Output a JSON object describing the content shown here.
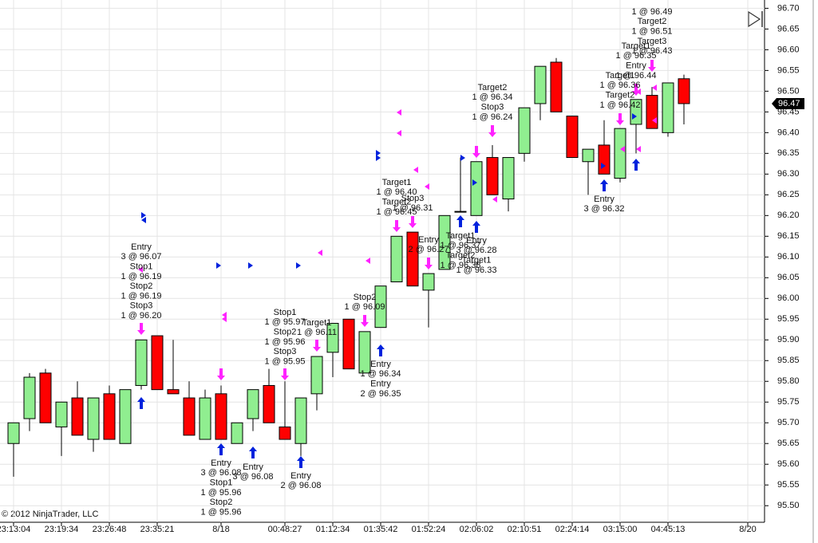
{
  "chart_data": {
    "type": "candlestick",
    "categories": [
      "23:13:04",
      null,
      null,
      "23:19:34",
      null,
      null,
      "23:26:48",
      null,
      null,
      "23:35:21",
      null,
      null,
      null,
      "8/18",
      null,
      null,
      null,
      "00:48:27",
      null,
      null,
      "01:12:34",
      null,
      null,
      "01:35:42",
      null,
      null,
      "01:52:24",
      null,
      null,
      "02:06:02",
      null,
      null,
      "02:10:51",
      null,
      null,
      "02:24:14",
      null,
      null,
      "03:15:00",
      null,
      null,
      "04:45:13",
      null,
      null,
      null,
      null,
      "8/20"
    ],
    "open": [
      95.65,
      95.71,
      95.82,
      95.69,
      95.76,
      95.66,
      95.77,
      95.65,
      95.79,
      95.91,
      95.78,
      95.76,
      95.66,
      95.77,
      95.65,
      95.71,
      95.79,
      95.69,
      95.65,
      95.77,
      95.87,
      95.95,
      95.82,
      95.93,
      96.04,
      96.16,
      96.02,
      96.07,
      96.21,
      96.2,
      96.34,
      96.24,
      96.35,
      96.47,
      96.57,
      96.44,
      96.33,
      96.37,
      96.29,
      96.42,
      96.49,
      96.4,
      96.53,
      null,
      null,
      null,
      null
    ],
    "high": [
      95.7,
      95.82,
      95.83,
      95.75,
      95.8,
      95.76,
      95.79,
      95.78,
      95.9,
      95.91,
      95.9,
      95.8,
      95.78,
      95.79,
      95.7,
      95.78,
      95.83,
      95.8,
      95.76,
      95.86,
      95.94,
      95.95,
      95.92,
      96.03,
      96.15,
      96.16,
      96.06,
      96.2,
      96.34,
      96.33,
      96.37,
      96.34,
      96.46,
      96.56,
      96.58,
      96.44,
      96.36,
      96.43,
      96.41,
      96.48,
      96.51,
      96.52,
      96.54,
      null,
      null,
      null,
      null
    ],
    "low": [
      95.57,
      95.68,
      95.7,
      95.62,
      95.67,
      95.63,
      95.66,
      95.65,
      95.78,
      95.78,
      95.77,
      95.67,
      95.66,
      95.66,
      95.65,
      95.68,
      95.7,
      95.66,
      95.62,
      95.73,
      95.81,
      95.83,
      95.82,
      95.93,
      96.04,
      96.03,
      95.93,
      96.07,
      96.21,
      96.2,
      96.25,
      96.21,
      96.33,
      96.43,
      96.45,
      96.34,
      96.25,
      96.3,
      96.28,
      96.35,
      96.41,
      96.39,
      96.42,
      null,
      null,
      null,
      null
    ],
    "close": [
      95.7,
      95.81,
      95.7,
      95.75,
      95.67,
      95.76,
      95.66,
      95.78,
      95.9,
      95.78,
      95.77,
      95.67,
      95.76,
      95.66,
      95.7,
      95.78,
      95.7,
      95.66,
      95.76,
      95.86,
      95.94,
      95.83,
      95.92,
      96.03,
      96.15,
      96.03,
      96.06,
      96.2,
      96.21,
      96.33,
      96.25,
      96.34,
      96.46,
      96.56,
      96.45,
      96.34,
      96.36,
      96.3,
      96.41,
      96.48,
      96.41,
      96.52,
      96.47,
      null,
      null,
      null,
      null
    ],
    "up_color": "#90ee90",
    "down_color": "#ff0000",
    "ylim": [
      95.46,
      96.72
    ],
    "yticks": [
      {
        "value": 95.5,
        "label": "95.50"
      },
      95.55,
      {
        "value": 95.6,
        "label": "95.60"
      },
      95.65,
      {
        "value": 95.7,
        "label": "95.70"
      },
      95.75,
      {
        "value": 95.8,
        "label": "95.80"
      },
      95.85,
      {
        "value": 95.9,
        "label": "95.90"
      },
      95.95,
      {
        "value": 96.0,
        "label": "96.00"
      },
      96.05,
      {
        "value": 96.1,
        "label": "96.10"
      },
      96.15,
      {
        "value": 96.2,
        "label": "96.20"
      },
      96.25,
      {
        "value": 96.3,
        "label": "96.30"
      },
      96.35,
      {
        "value": 96.4,
        "label": "96.40"
      },
      96.45,
      {
        "value": 96.5,
        "label": "96.50"
      },
      96.55,
      {
        "value": 96.6,
        "label": "96.60"
      },
      96.65,
      {
        "value": 96.7,
        "label": "96.70"
      }
    ],
    "grid": true,
    "last_price": 96.47,
    "copyright": "© 2012 NinjaTrader, LLC",
    "annotations": [
      {
        "lines": [
          "Entry",
          "3 @ 96.07",
          "Stop1",
          "1 @ 96.19",
          "Stop2",
          "1 @ 96.19",
          "Stop3",
          "1 @ 96.20"
        ]
      },
      {
        "lines": [
          "Entry",
          "3 @ 96.08",
          "Stop1",
          "1 @ 95.96",
          "Stop2",
          "1 @ 95.96"
        ]
      },
      {
        "lines": [
          "Entry",
          "3 @ 96.08"
        ]
      },
      {
        "lines": [
          "Stop1",
          "1 @ 95.97",
          "Stop2",
          "1 @ 95.96",
          "Stop3",
          "1 @ 95.95"
        ]
      },
      {
        "lines": [
          "Target1",
          "1 @ 96.11"
        ]
      },
      {
        "lines": [
          "Entry",
          "2 @ 96.08"
        ]
      },
      {
        "lines": [
          "Stop2",
          "1 @ 96.09"
        ]
      },
      {
        "lines": [
          "Entry",
          "1 @ 96.34",
          "Entry",
          "2 @ 96.35"
        ]
      },
      {
        "lines": [
          "Target1",
          "1 @ 96.40",
          "Target2",
          "1 @ 96.45"
        ]
      },
      {
        "lines": [
          "Stop3",
          "1 @ 96.31"
        ]
      },
      {
        "lines": [
          "Entry",
          "2 @ 96.27"
        ]
      },
      {
        "lines": [
          "Target1",
          "1 @ 96.37",
          "Target2",
          "1 @ 96.38"
        ]
      },
      {
        "lines": [
          "Entry",
          "3 @ 96.28",
          "Target1",
          "1 @ 96.33"
        ]
      },
      {
        "lines": [
          "Target2",
          "1 @ 96.34",
          "Stop3",
          "1 @ 96.24"
        ]
      },
      {
        "lines": [
          "Entry",
          "3 @ 96.32"
        ]
      },
      {
        "lines": [
          "Target1",
          "1 @ 96.36",
          "Target2",
          "1 @ 96.42"
        ]
      },
      {
        "lines": [
          "Target1",
          "1 @ 96.35",
          "Entry",
          "1 @ 96.44"
        ]
      },
      {
        "lines": [
          "1 @ 96.49",
          "Target2",
          "1 @ 96.51",
          "Target3",
          "1 @ 96.43"
        ]
      }
    ]
  }
}
